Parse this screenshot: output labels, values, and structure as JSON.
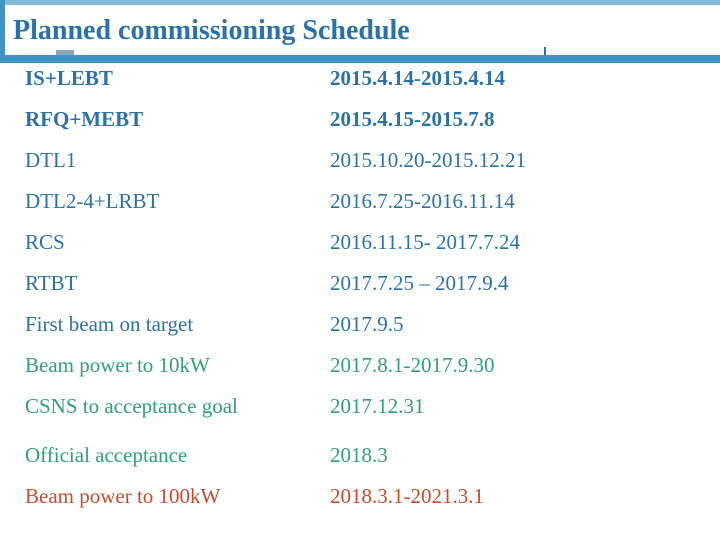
{
  "slide": {
    "title": "Planned commissioning Schedule",
    "colors": {
      "top_bar_light_blue": "#85bad6",
      "divider_bar_blue": "#4193c4",
      "text_blue": "#2b72a8",
      "text_green": "#2ea273",
      "text_red": "#cb4a2a"
    },
    "schedule": {
      "rows": [
        {
          "item": "IS+LEBT",
          "dates": "2015.4.14-2015.4.14",
          "color": "blue",
          "bold": true,
          "gap_before": false
        },
        {
          "item": "RFQ+MEBT",
          "dates": "2015.4.15-2015.7.8",
          "color": "blue",
          "bold": true,
          "gap_before": false
        },
        {
          "item": "DTL1",
          "dates": "2015.10.20-2015.12.21",
          "color": "blue",
          "bold": false,
          "gap_before": false
        },
        {
          "item": "DTL2-4+LRBT",
          "dates": "2016.7.25-2016.11.14",
          "color": "blue",
          "bold": false,
          "gap_before": false
        },
        {
          "item": "RCS",
          "dates": "2016.11.15- 2017.7.24",
          "color": "blue",
          "bold": false,
          "gap_before": false
        },
        {
          "item": "RTBT",
          "dates": "2017.7.25 – 2017.9.4",
          "color": "blue",
          "bold": false,
          "gap_before": false
        },
        {
          "item": "First beam on target",
          "dates": "2017.9.5",
          "color": "blue",
          "bold": false,
          "gap_before": false
        },
        {
          "item": "Beam power to 10kW",
          "dates": "2017.8.1-2017.9.30",
          "color": "green",
          "bold": false,
          "gap_before": false
        },
        {
          "item": "CSNS to acceptance goal",
          "dates": "2017.12.31",
          "color": "green",
          "bold": false,
          "gap_before": false
        },
        {
          "item": "Official acceptance",
          "dates": "2018.3",
          "color": "green",
          "bold": false,
          "gap_before": true
        },
        {
          "item": "Beam power to 100kW",
          "dates": "2018.3.1-2021.3.1",
          "color": "red",
          "bold": false,
          "gap_before": false
        }
      ]
    }
  }
}
